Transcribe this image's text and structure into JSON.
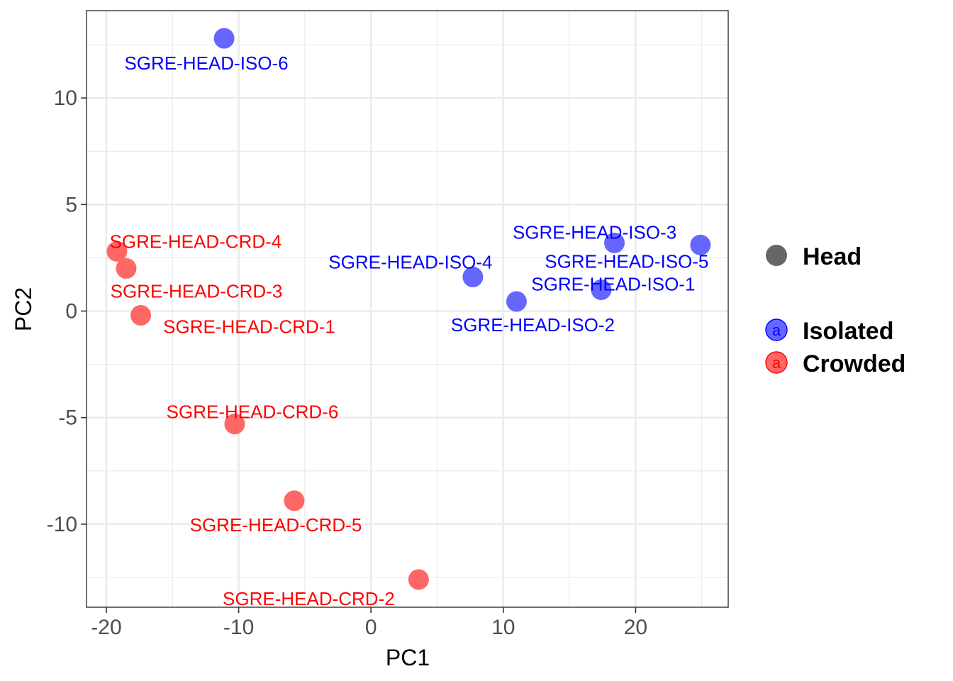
{
  "chart_data": {
    "type": "scatter",
    "title": "",
    "xlabel": "PC1",
    "ylabel": "PC2",
    "xlim": [
      -21.5,
      27
    ],
    "ylim": [
      -13.9,
      14.1
    ],
    "x_ticks": [
      -20,
      -10,
      0,
      10,
      20
    ],
    "x_tick_labels": [
      "-20",
      "-10",
      "0",
      "10",
      "20"
    ],
    "y_ticks": [
      -10,
      -5,
      0,
      5,
      10
    ],
    "y_tick_labels": [
      "-10",
      "-5",
      "0",
      "5",
      "10"
    ],
    "grid": true,
    "legend_placement": "right",
    "shape_legend": {
      "label": "Head",
      "color": "#666666"
    },
    "legend_key_letter": "a",
    "series": [
      {
        "name": "Isolated",
        "color": "#6666ff",
        "label_color": "#0000ff",
        "points": [
          {
            "label": "SGRE-HEAD-ISO-6",
            "x": -11.1,
            "y": 12.8
          },
          {
            "label": "SGRE-HEAD-ISO-4",
            "x": 7.7,
            "y": 1.6
          },
          {
            "label": "SGRE-HEAD-ISO-2",
            "x": 11.0,
            "y": 0.45
          },
          {
            "label": "SGRE-HEAD-ISO-1",
            "x": 17.4,
            "y": 1.0
          },
          {
            "label": "SGRE-HEAD-ISO-3",
            "x": 18.4,
            "y": 3.2
          },
          {
            "label": "SGRE-HEAD-ISO-5",
            "x": 24.9,
            "y": 3.1
          }
        ]
      },
      {
        "name": "Crowded",
        "color": "#ff6666",
        "label_color": "#ff0000",
        "points": [
          {
            "label": "SGRE-HEAD-CRD-4",
            "x": -19.2,
            "y": 2.8
          },
          {
            "label": "SGRE-HEAD-CRD-3",
            "x": -18.5,
            "y": 2.0
          },
          {
            "label": "SGRE-HEAD-CRD-1",
            "x": -17.4,
            "y": -0.2
          },
          {
            "label": "SGRE-HEAD-CRD-6",
            "x": -10.3,
            "y": -5.3
          },
          {
            "label": "SGRE-HEAD-CRD-5",
            "x": -5.8,
            "y": -8.9
          },
          {
            "label": "SGRE-HEAD-CRD-2",
            "x": 3.6,
            "y": -12.6
          }
        ]
      }
    ]
  }
}
